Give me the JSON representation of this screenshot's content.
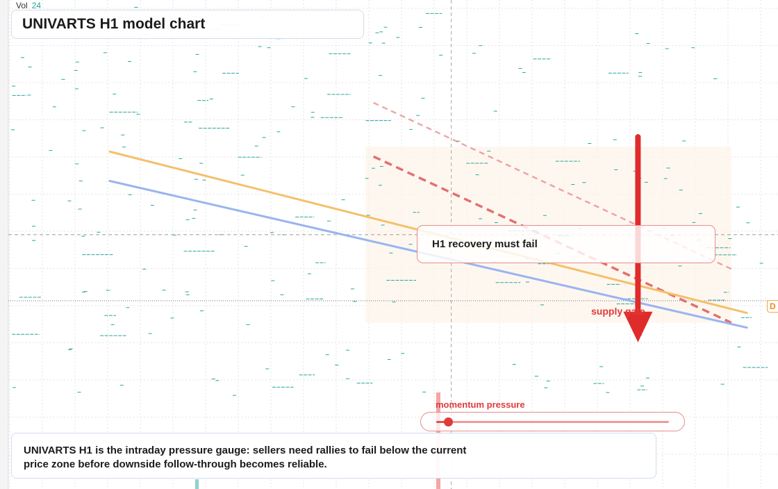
{
  "volume": {
    "label": "Vol",
    "value": "24"
  },
  "title": "UNIVARTS H1 model chart",
  "callout": "H1 recovery must fail",
  "supply_label": "supply gate",
  "edge_label": "D",
  "momentum": {
    "label": "momentum pressure",
    "level": 0.05
  },
  "summary": "UNIVARTS H1 is the intraday pressure gauge: sellers need rallies to fail below the current price zone before downside follow-through becomes reliable.",
  "colors": {
    "upper_line": "#f4c06a",
    "lower_line": "#9ab4ef",
    "resistance": "#e06262",
    "arrow": "#e02b2b",
    "dashes": "#26a69a",
    "grid": "#e3e3e3"
  },
  "icons": {
    "direction": "down-arrow-icon"
  },
  "chart_data": {
    "type": "line",
    "title": "UNIVARTS H1 model chart",
    "xlabel": "",
    "ylabel": "",
    "grid": true,
    "x_range": [
      0,
      100
    ],
    "y_range": [
      0,
      100
    ],
    "series": [
      {
        "x": [
          14.1,
          96.0
        ],
        "y": [
          69.0,
          36.0
        ]
      },
      {
        "x": [
          14.1,
          96.0
        ],
        "y": [
          63.0,
          33.0
        ]
      }
    ],
    "resistance_lines": [
      {
        "x": [
          48.0,
          94.0
        ],
        "y": [
          68.0,
          34.0
        ]
      },
      {
        "x": [
          48.0,
          94.0
        ],
        "y": [
          79.0,
          45.0
        ]
      }
    ],
    "zone": {
      "x": [
        47.0,
        94.0
      ],
      "y": [
        34.0,
        70.0
      ]
    },
    "arrow": {
      "x": 82.0,
      "y_from": [
        72.0,
        30.0
      ]
    },
    "h_lines": [
      52.0,
      38.5
    ],
    "v_line": 58.0
  }
}
